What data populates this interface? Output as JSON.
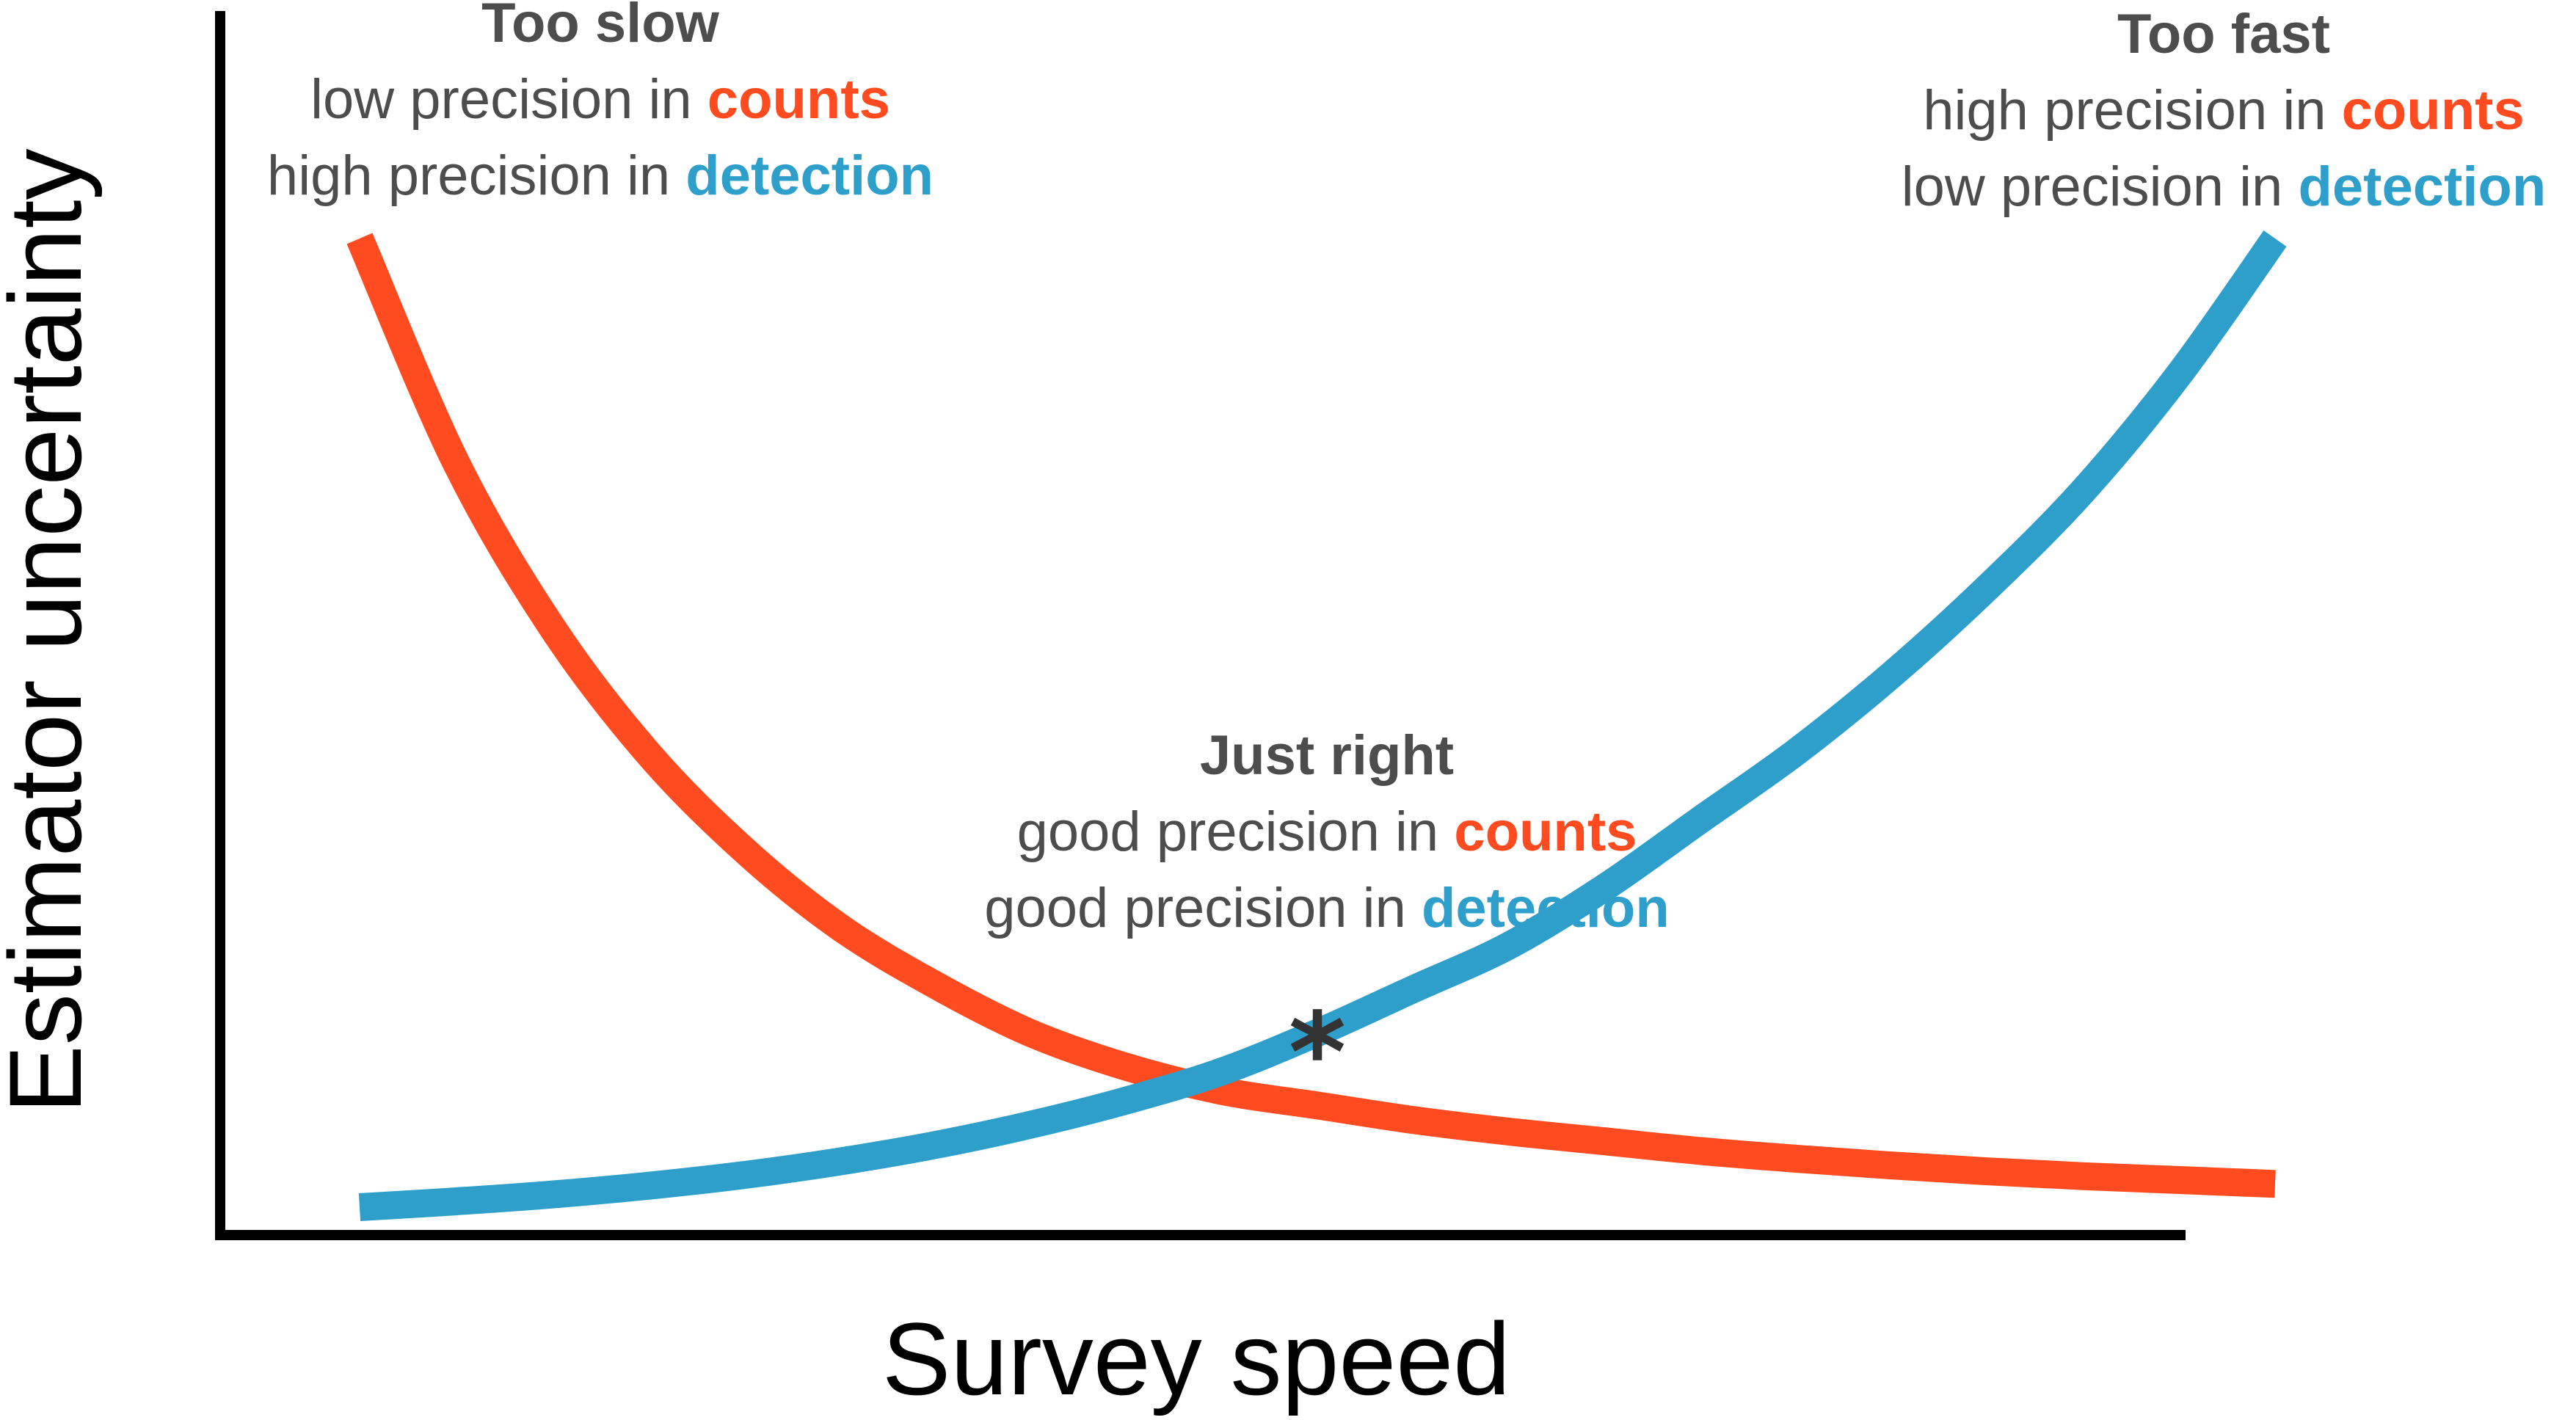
{
  "chart_data": {
    "type": "line",
    "xlabel": "Survey speed",
    "ylabel": "Estimator uncertainty",
    "xlim": [
      0,
      1
    ],
    "ylim": [
      0,
      1
    ],
    "grid": false,
    "series": [
      {
        "key": "counts",
        "color": "#ff4b1f",
        "x": [
          0.0,
          0.05,
          0.1,
          0.15,
          0.2,
          0.25,
          0.3,
          0.35,
          0.4,
          0.45,
          0.5,
          0.55,
          0.6,
          0.65,
          0.7,
          0.75,
          0.8,
          0.85,
          0.9,
          0.95,
          1.0
        ],
        "y": [
          1.0,
          0.77,
          0.6,
          0.47,
          0.37,
          0.29,
          0.23,
          0.18,
          0.145,
          0.12,
          0.105,
          0.09,
          0.078,
          0.068,
          0.058,
          0.05,
          0.043,
          0.037,
          0.032,
          0.028,
          0.024
        ]
      },
      {
        "key": "detection",
        "color": "#2e9fca",
        "x": [
          0.0,
          0.05,
          0.1,
          0.15,
          0.2,
          0.25,
          0.3,
          0.35,
          0.4,
          0.45,
          0.5,
          0.55,
          0.6,
          0.65,
          0.7,
          0.75,
          0.8,
          0.85,
          0.9,
          0.95,
          1.0
        ],
        "y": [
          0.0,
          0.006,
          0.013,
          0.022,
          0.033,
          0.047,
          0.064,
          0.085,
          0.11,
          0.14,
          0.18,
          0.225,
          0.27,
          0.33,
          0.4,
          0.47,
          0.55,
          0.64,
          0.74,
          0.86,
          1.0
        ]
      }
    ],
    "marker": {
      "text": "*",
      "x": 0.5,
      "y": 0.105
    },
    "annotations": [
      {
        "key": "slow",
        "heading": "Too slow",
        "line1_prefix": "low precision in ",
        "line1_highlight": "counts",
        "line2_prefix": "high precision in ",
        "line2_highlight": "detection"
      },
      {
        "key": "fast",
        "heading": "Too fast",
        "line1_prefix": "high precision in ",
        "line1_highlight": "counts",
        "line2_prefix": "low precision in ",
        "line2_highlight": "detection"
      },
      {
        "key": "right",
        "heading": "Just right",
        "line1_prefix": "good precision in ",
        "line1_highlight": "counts",
        "line2_prefix": "good precision in ",
        "line2_highlight": "detection"
      }
    ],
    "colors": {
      "counts": "#ff4b1f",
      "detection": "#2e9fca",
      "text": "#4d4d4d",
      "axis": "#000000"
    }
  }
}
